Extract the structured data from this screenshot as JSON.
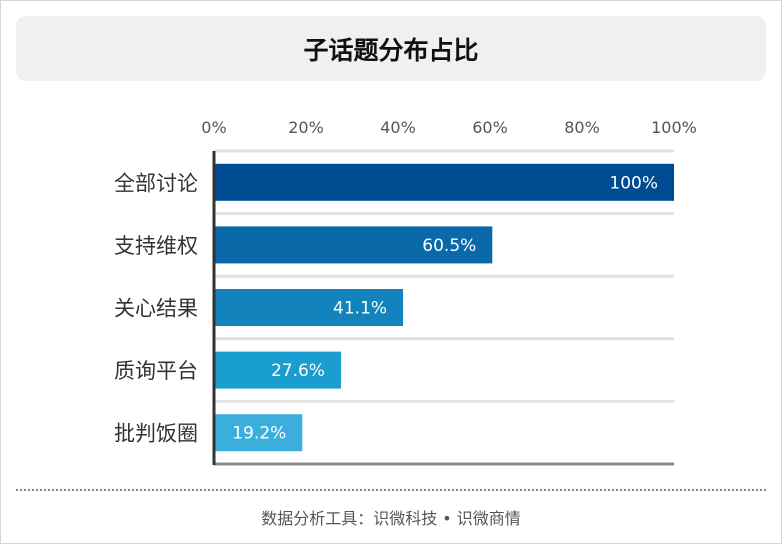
{
  "chart_data": {
    "type": "bar",
    "orientation": "horizontal",
    "title": "子话题分布占比",
    "categories": [
      "全部讨论",
      "支持维权",
      "关心结果",
      "质询平台",
      "批判饭圈"
    ],
    "values": [
      100,
      60.5,
      41.1,
      27.6,
      19.2
    ],
    "data_labels": [
      "100%",
      "60.5%",
      "41.1%",
      "27.6%",
      "19.2%"
    ],
    "colors": [
      "#004c92",
      "#0a69a9",
      "#1283bc",
      "#1a9ecf",
      "#3baedb"
    ],
    "xlim": [
      0,
      100
    ],
    "x_ticks": [
      "0%",
      "20%",
      "40%",
      "60%",
      "80%",
      "100%"
    ],
    "x_axis_position": "top",
    "grid": false
  },
  "footer": "数据分析工具：识微科技 • 识微商情"
}
